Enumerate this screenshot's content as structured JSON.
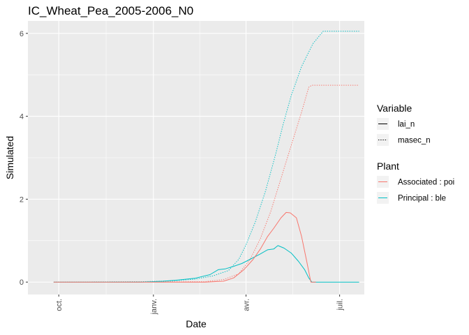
{
  "chart_data": {
    "type": "line",
    "title": "IC_Wheat_Pea_2005-2006_N0",
    "xlabel": "Date",
    "ylabel": "Simulated",
    "x_type": "date",
    "xlim": [
      "2005-09-01",
      "2006-07-25"
    ],
    "ylim": [
      -0.3,
      6.3
    ],
    "x_ticks": [
      {
        "date": "2005-10-01",
        "label": "oct."
      },
      {
        "date": "2006-01-01",
        "label": "janv."
      },
      {
        "date": "2006-04-01",
        "label": "avr."
      },
      {
        "date": "2006-07-01",
        "label": "juil."
      }
    ],
    "y_ticks": [
      0,
      2,
      4,
      6
    ],
    "grid": true,
    "panel_background": "#ebebeb",
    "legends": [
      {
        "title": "Variable",
        "entries": [
          {
            "label": "lai_n",
            "linetype": "solid"
          },
          {
            "label": "masec_n",
            "linetype": "dotted"
          }
        ]
      },
      {
        "title": "Plant",
        "entries": [
          {
            "label": "Associated : poi",
            "color": "#F8766D"
          },
          {
            "label": "Principal : ble",
            "color": "#00BFC4"
          }
        ]
      }
    ],
    "legend_position": "right",
    "series": [
      {
        "variable": "masec_n",
        "plant": "Principal : ble",
        "color": "#00BFC4",
        "linetype": "dotted",
        "points": [
          [
            "2005-09-26",
            0
          ],
          [
            "2005-12-20",
            0.01
          ],
          [
            "2006-01-20",
            0.03
          ],
          [
            "2006-02-10",
            0.07
          ],
          [
            "2006-02-28",
            0.15
          ],
          [
            "2006-03-15",
            0.28
          ],
          [
            "2006-03-25",
            0.55
          ],
          [
            "2006-04-01",
            0.9
          ],
          [
            "2006-04-10",
            1.45
          ],
          [
            "2006-04-20",
            2.2
          ],
          [
            "2006-04-30",
            3.1
          ],
          [
            "2006-05-07",
            3.8
          ],
          [
            "2006-05-15",
            4.5
          ],
          [
            "2006-05-25",
            5.2
          ],
          [
            "2006-06-05",
            5.75
          ],
          [
            "2006-06-15",
            6.05
          ],
          [
            "2006-07-20",
            6.05
          ]
        ]
      },
      {
        "variable": "masec_n",
        "plant": "Associated : poi",
        "color": "#F8766D",
        "linetype": "dotted",
        "points": [
          [
            "2005-09-26",
            0
          ],
          [
            "2006-02-20",
            0.01
          ],
          [
            "2006-03-10",
            0.06
          ],
          [
            "2006-03-25",
            0.2
          ],
          [
            "2006-04-05",
            0.55
          ],
          [
            "2006-04-15",
            1.05
          ],
          [
            "2006-04-25",
            1.7
          ],
          [
            "2006-05-05",
            2.5
          ],
          [
            "2006-05-15",
            3.3
          ],
          [
            "2006-05-25",
            4.1
          ],
          [
            "2006-06-01",
            4.7
          ],
          [
            "2006-06-04",
            4.75
          ],
          [
            "2006-07-20",
            4.75
          ]
        ]
      },
      {
        "variable": "lai_n",
        "plant": "Principal : ble",
        "color": "#00BFC4",
        "linetype": "solid",
        "points": [
          [
            "2005-09-26",
            0
          ],
          [
            "2005-12-20",
            0
          ],
          [
            "2006-01-10",
            0.02
          ],
          [
            "2006-01-25",
            0.05
          ],
          [
            "2006-02-10",
            0.09
          ],
          [
            "2006-02-25",
            0.18
          ],
          [
            "2006-03-05",
            0.3
          ],
          [
            "2006-03-12",
            0.32
          ],
          [
            "2006-03-20",
            0.38
          ],
          [
            "2006-03-28",
            0.45
          ],
          [
            "2006-04-05",
            0.55
          ],
          [
            "2006-04-15",
            0.68
          ],
          [
            "2006-04-22",
            0.78
          ],
          [
            "2006-04-28",
            0.8
          ],
          [
            "2006-05-02",
            0.88
          ],
          [
            "2006-05-08",
            0.82
          ],
          [
            "2006-05-15",
            0.7
          ],
          [
            "2006-05-22",
            0.5
          ],
          [
            "2006-05-28",
            0.3
          ],
          [
            "2006-06-01",
            0.1
          ],
          [
            "2006-06-04",
            0
          ],
          [
            "2006-07-20",
            0
          ]
        ]
      },
      {
        "variable": "lai_n",
        "plant": "Associated : poi",
        "color": "#F8766D",
        "linetype": "solid",
        "points": [
          [
            "2005-09-26",
            0
          ],
          [
            "2006-02-20",
            0
          ],
          [
            "2006-03-10",
            0.02
          ],
          [
            "2006-03-20",
            0.1
          ],
          [
            "2006-03-30",
            0.3
          ],
          [
            "2006-04-08",
            0.55
          ],
          [
            "2006-04-15",
            0.8
          ],
          [
            "2006-04-22",
            1.1
          ],
          [
            "2006-04-28",
            1.3
          ],
          [
            "2006-05-05",
            1.55
          ],
          [
            "2006-05-10",
            1.68
          ],
          [
            "2006-05-14",
            1.67
          ],
          [
            "2006-05-20",
            1.55
          ],
          [
            "2006-05-25",
            1.1
          ],
          [
            "2006-05-30",
            0.5
          ],
          [
            "2006-06-03",
            0
          ],
          [
            "2006-06-08",
            0
          ]
        ]
      }
    ]
  }
}
